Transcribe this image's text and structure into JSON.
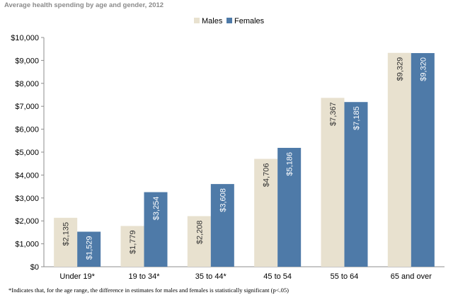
{
  "chart_data": {
    "type": "bar",
    "title": "Average health spending by age and gender, 2012",
    "categories": [
      "Under 19*",
      "19 to 34*",
      "35 to 44*",
      "45 to 54",
      "55 to 64",
      "65 and over"
    ],
    "series": [
      {
        "name": "Males",
        "values": [
          2135,
          1779,
          2208,
          4706,
          7367,
          9329
        ],
        "labels": [
          "$2,135",
          "$1,779",
          "$2,208",
          "$4,706",
          "$7,367",
          "$9,329"
        ],
        "color": "#e8e1cf"
      },
      {
        "name": "Females",
        "values": [
          1529,
          3254,
          3608,
          5186,
          7185,
          9320
        ],
        "labels": [
          "$1,529",
          "$3,254",
          "$3,608",
          "$5,186",
          "$7,185",
          "$9,320"
        ],
        "color": "#4e7aa8"
      }
    ],
    "ylim": [
      0,
      10000
    ],
    "yticks": [
      0,
      1000,
      2000,
      3000,
      4000,
      5000,
      6000,
      7000,
      8000,
      9000,
      10000
    ],
    "ytick_labels": [
      "$0",
      "$1,000",
      "$2,000",
      "$3,000",
      "$4,000",
      "$5,000",
      "$6,000",
      "$7,000",
      "$8,000",
      "$9,000",
      "$10,000"
    ],
    "legend_position": "top-center",
    "grid": false,
    "footnote": "*Indicates that, for the age range, the difference in estimates for males and females is statistically significant  (p<.05)"
  }
}
